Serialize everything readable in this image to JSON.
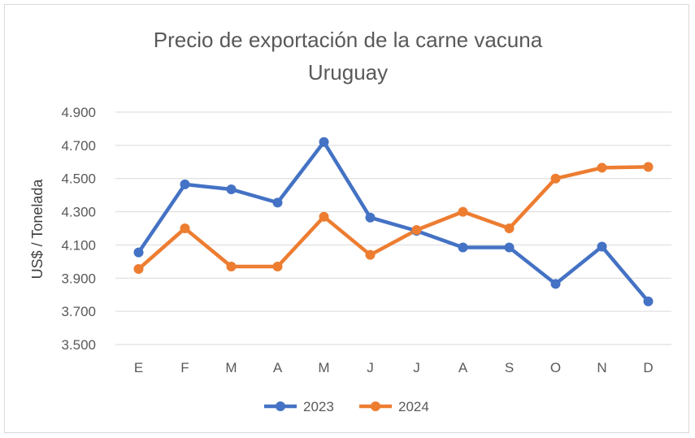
{
  "chart_data": {
    "type": "line",
    "title_line1": "Precio de exportación de la carne vacuna",
    "title_line2": "Uruguay",
    "xlabel": "",
    "ylabel": "US$ / Tonelada",
    "categories": [
      "E",
      "F",
      "M",
      "A",
      "M",
      "J",
      "J",
      "A",
      "S",
      "O",
      "N",
      "D"
    ],
    "yticks": [
      "3.500",
      "3.700",
      "3.900",
      "4.100",
      "4.300",
      "4.500",
      "4.700",
      "4.900"
    ],
    "ylim": [
      3500,
      4900
    ],
    "grid": true,
    "legend_position": "bottom",
    "series": [
      {
        "name": "2023",
        "color": "#4472c4",
        "values": [
          4055,
          4465,
          4435,
          4355,
          4720,
          4265,
          4185,
          4085,
          4085,
          3865,
          4090,
          3760
        ]
      },
      {
        "name": "2024",
        "color": "#ed7d31",
        "values": [
          3955,
          4200,
          3970,
          3970,
          4270,
          4040,
          4190,
          4300,
          4200,
          4500,
          4565,
          4570
        ]
      }
    ]
  }
}
